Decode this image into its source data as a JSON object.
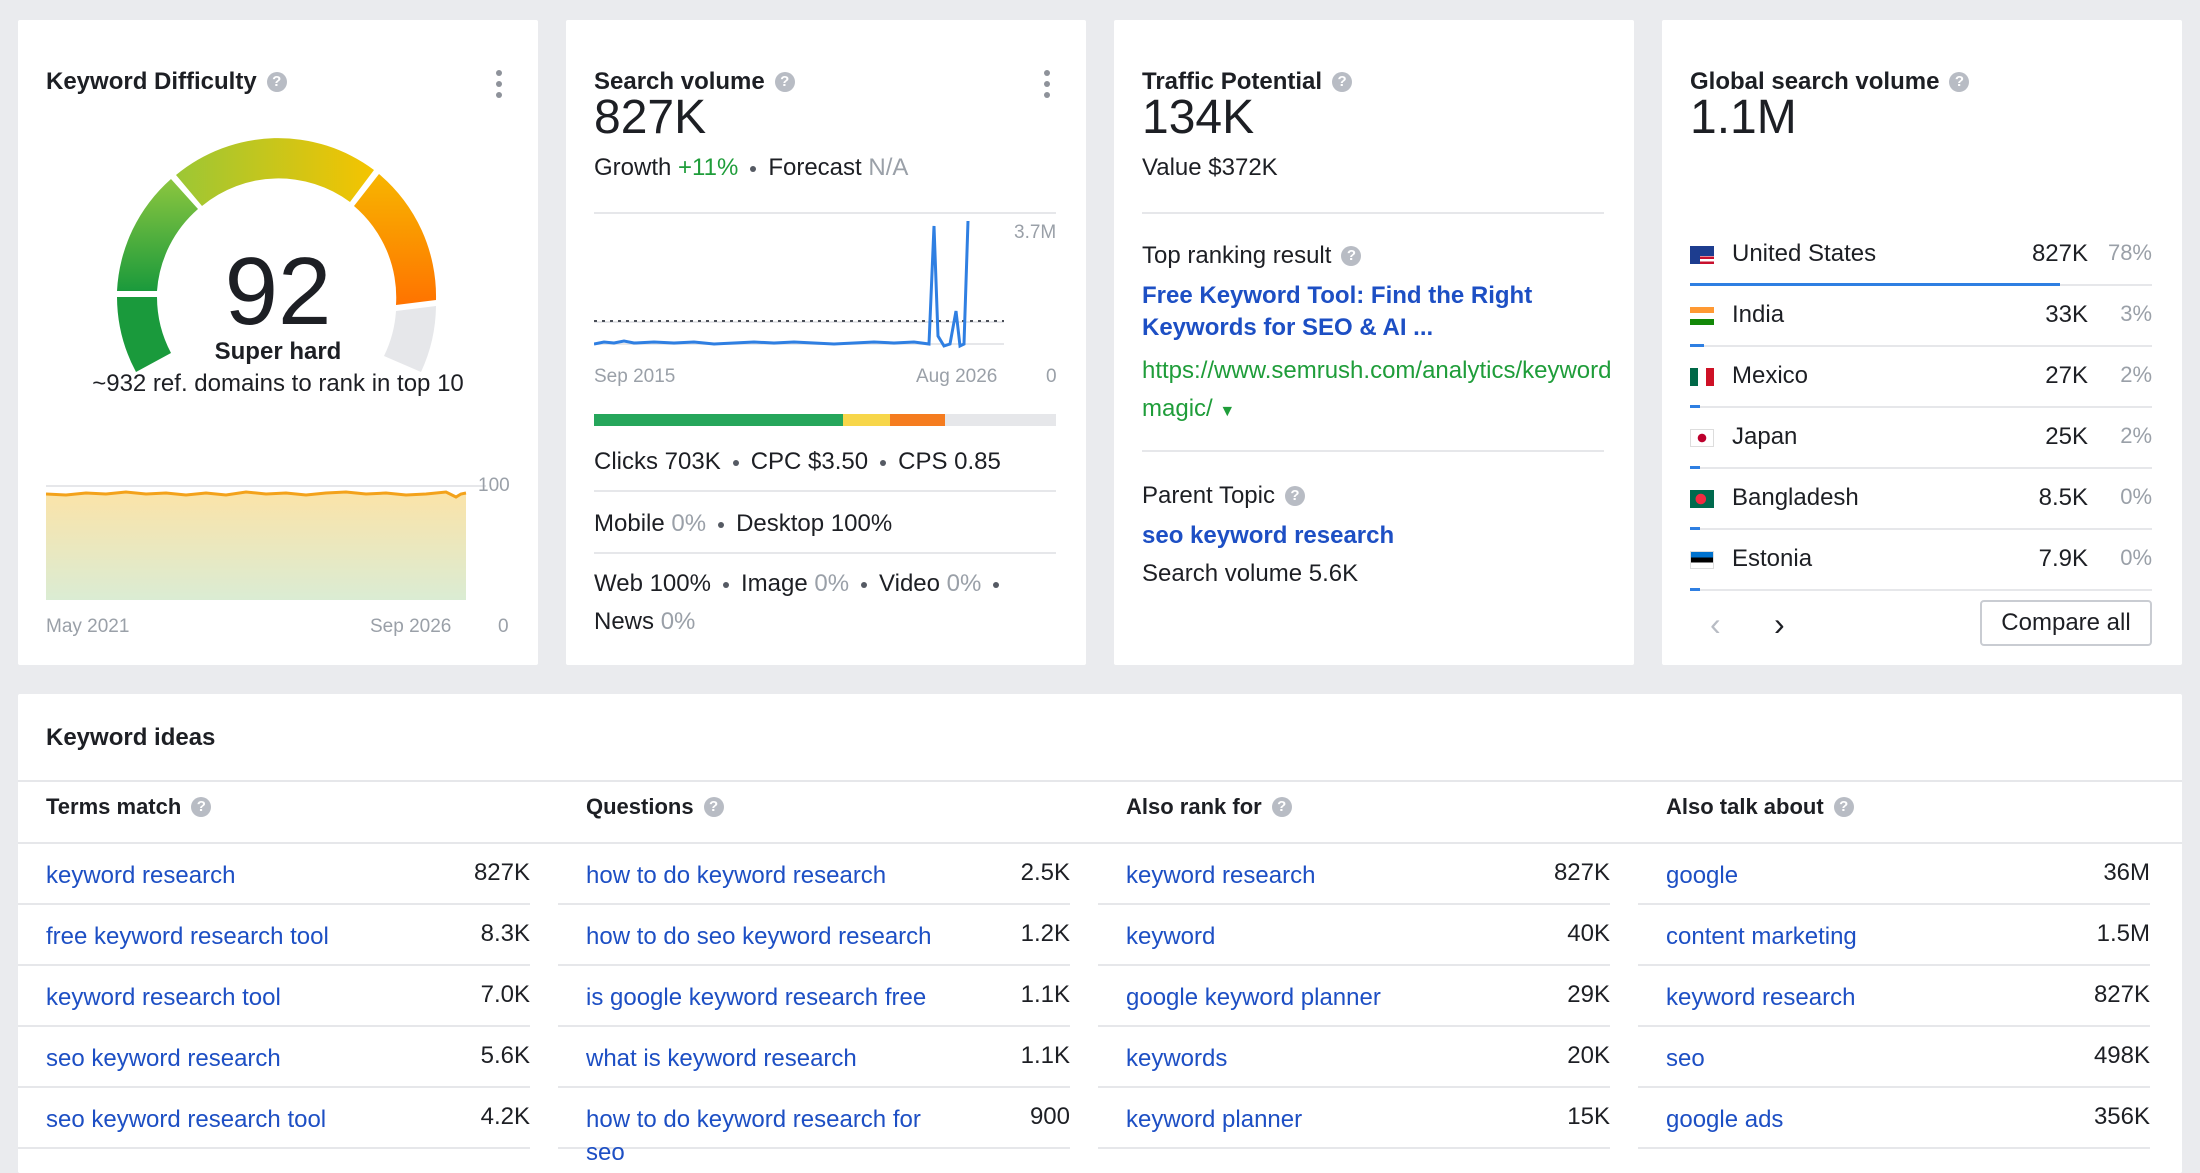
{
  "kd": {
    "title": "Keyword Difficulty",
    "score": "92",
    "label": "Super hard",
    "note": "~932 ref. domains to rank in top 10",
    "chart_ymax": "100",
    "chart_ymin": "0",
    "chart_start": "May 2021",
    "chart_end": "Sep 2026"
  },
  "sv": {
    "title": "Search volume",
    "value": "827K",
    "growth_label": "Growth",
    "growth_value": "+11%",
    "forecast_label": "Forecast",
    "forecast_value": "N/A",
    "chart_ymax": "3.7M",
    "chart_ymin": "0",
    "chart_start": "Sep 2015",
    "chart_end": "Aug 2026",
    "clicks": "Clicks 703K",
    "cpc": "CPC $3.50",
    "cps": "CPS 0.85",
    "mobile_label": "Mobile",
    "mobile_value": "0%",
    "desktop": "Desktop 100%",
    "web": "Web 100%",
    "image_label": "Image",
    "image_value": "0%",
    "video_label": "Video",
    "video_value": "0%",
    "news_label": "News",
    "news_value": "0%",
    "click_split": [
      0.54,
      0.1,
      0.12,
      0.24
    ],
    "click_colors": [
      "#26a65b",
      "#f7d64a",
      "#f57c1f",
      "#e6e7ea"
    ]
  },
  "tp": {
    "title": "Traffic Potential",
    "value": "134K",
    "value_line": "Value $372K",
    "top_label": "Top ranking result",
    "top_title": "Free Keyword Tool: Find the Right Keywords for SEO & AI ...",
    "top_url": "https://www.semrush.com/analytics/keywordmagic/",
    "parent_label": "Parent Topic",
    "parent_value": "seo keyword research",
    "parent_volume": "Search volume 5.6K"
  },
  "gsv": {
    "title": "Global search volume",
    "value": "1.1M",
    "countries": [
      {
        "name": "United States",
        "value": "827K",
        "pct": "78%",
        "share": 0.78
      },
      {
        "name": "India",
        "value": "33K",
        "pct": "3%",
        "share": 0.03
      },
      {
        "name": "Mexico",
        "value": "27K",
        "pct": "2%",
        "share": 0.02
      },
      {
        "name": "Japan",
        "value": "25K",
        "pct": "2%",
        "share": 0.02
      },
      {
        "name": "Bangladesh",
        "value": "8.5K",
        "pct": "0%",
        "share": 0.005
      },
      {
        "name": "Estonia",
        "value": "7.9K",
        "pct": "0%",
        "share": 0.005
      }
    ],
    "compare_label": "Compare all"
  },
  "ideas": {
    "title": "Keyword ideas",
    "columns": [
      {
        "header": "Terms match",
        "rows": [
          {
            "kw": "keyword research",
            "v": "827K"
          },
          {
            "kw": "free keyword research tool",
            "v": "8.3K"
          },
          {
            "kw": "keyword research tool",
            "v": "7.0K"
          },
          {
            "kw": "seo keyword research",
            "v": "5.6K"
          },
          {
            "kw": "seo keyword research tool",
            "v": "4.2K"
          }
        ]
      },
      {
        "header": "Questions",
        "rows": [
          {
            "kw": "how to do keyword research",
            "v": "2.5K"
          },
          {
            "kw": "how to do seo keyword research",
            "v": "1.2K"
          },
          {
            "kw": "is google keyword research free",
            "v": "1.1K"
          },
          {
            "kw": "what is keyword research",
            "v": "1.1K"
          },
          {
            "kw": "how to do keyword research for seo",
            "v": "900"
          }
        ]
      },
      {
        "header": "Also rank for",
        "rows": [
          {
            "kw": "keyword research",
            "v": "827K"
          },
          {
            "kw": "keyword",
            "v": "40K"
          },
          {
            "kw": "google keyword planner",
            "v": "29K"
          },
          {
            "kw": "keywords",
            "v": "20K"
          },
          {
            "kw": "keyword planner",
            "v": "15K"
          }
        ]
      },
      {
        "header": "Also talk about",
        "rows": [
          {
            "kw": "google",
            "v": "36M"
          },
          {
            "kw": "content marketing",
            "v": "1.5M"
          },
          {
            "kw": "keyword research",
            "v": "827K"
          },
          {
            "kw": "seo",
            "v": "498K"
          },
          {
            "kw": "google ads",
            "v": "356K"
          }
        ]
      }
    ]
  }
}
